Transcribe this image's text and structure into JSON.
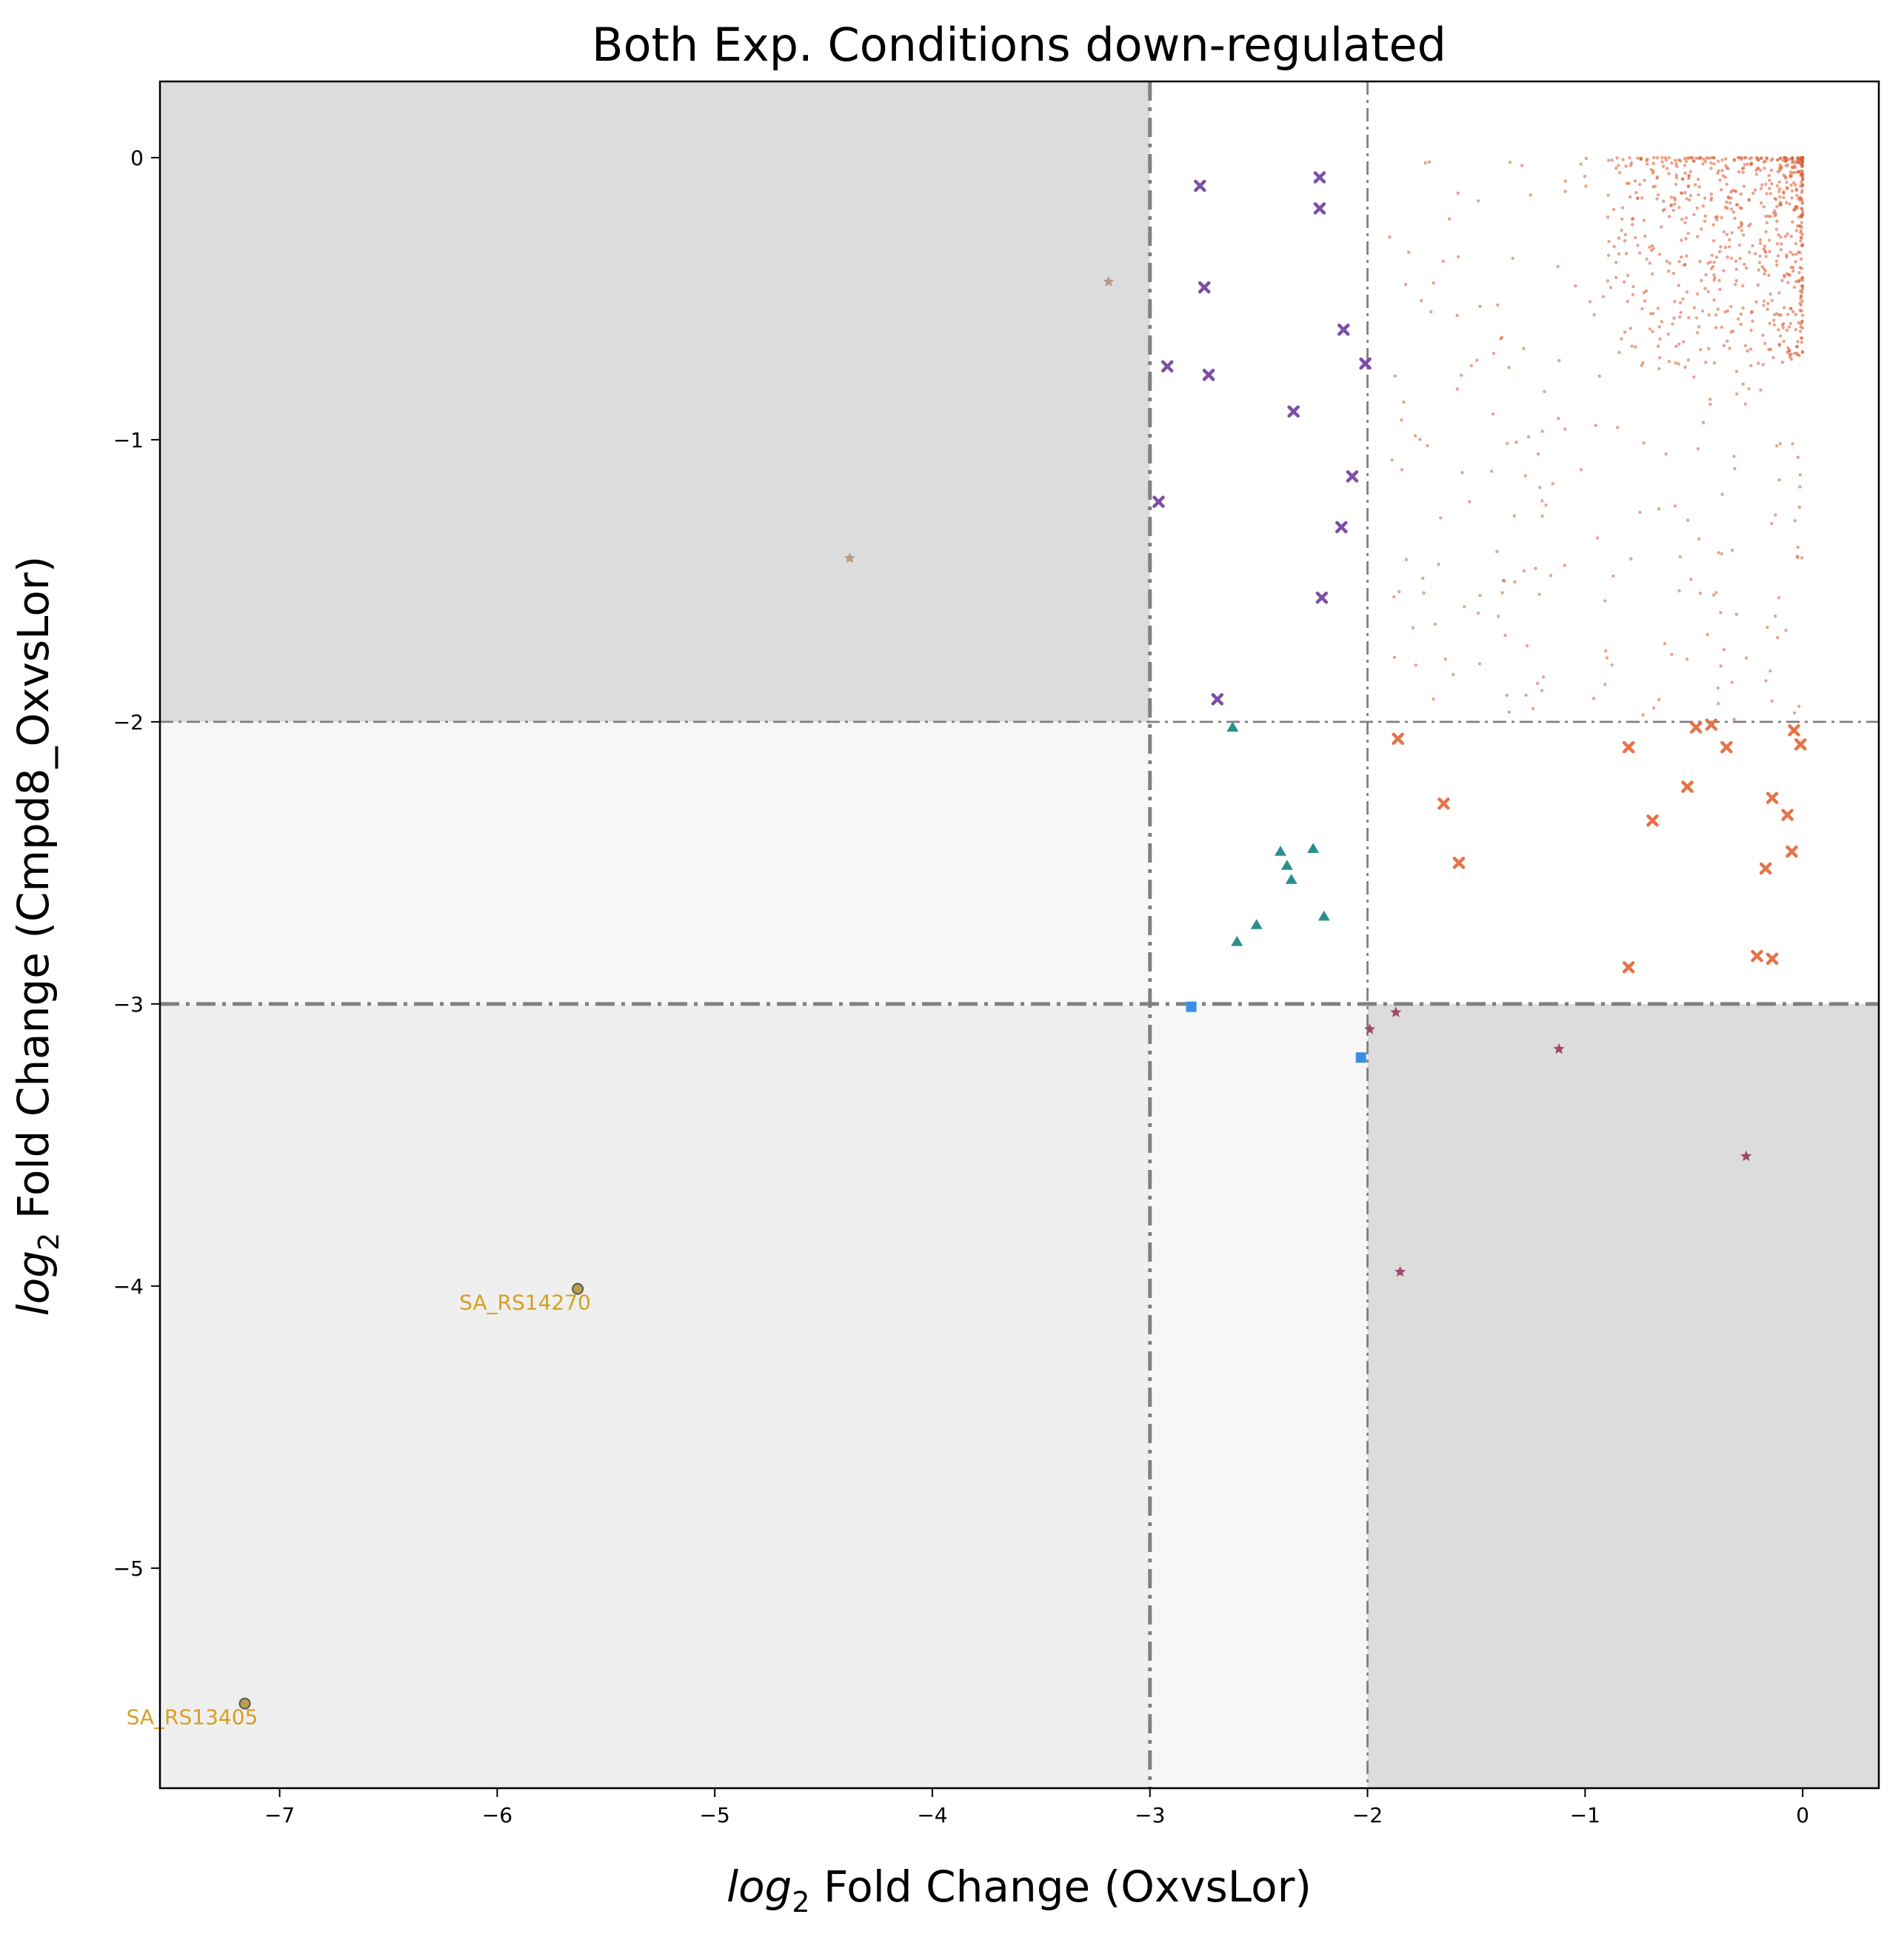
{
  "chart_data": {
    "type": "scatter",
    "title": "Both Exp. Conditions down-regulated",
    "xlabel_italic": "log",
    "xlabel_sub": "2",
    "xlabel_rest": " Fold Change (OxvsLor)",
    "ylabel_italic": "log",
    "ylabel_sub": "2",
    "ylabel_rest": " Fold Change (Cmpd8_OxvsLor)",
    "xlim": [
      -7.55,
      0.35
    ],
    "ylim": [
      -5.78,
      0.27
    ],
    "xticks": [
      -7,
      -6,
      -5,
      -4,
      -3,
      -2,
      -1,
      0
    ],
    "yticks": [
      0,
      -1,
      -2,
      -3,
      -4,
      -5
    ],
    "grid": false,
    "regions": [
      {
        "x": [
          -7.55,
          -3
        ],
        "y": [
          -2,
          0.27
        ],
        "color": "#dcdcdc"
      },
      {
        "x": [
          -2,
          0.35
        ],
        "y": [
          -5.78,
          -3
        ],
        "color": "#dcdcdc"
      },
      {
        "x": [
          -7.55,
          -3
        ],
        "y": [
          -5.78,
          -3
        ],
        "color": "#efefef"
      },
      {
        "x": [
          -7.55,
          -3
        ],
        "y": [
          -3,
          -2
        ],
        "color": "#f7f7f7"
      },
      {
        "x": [
          -3,
          -2
        ],
        "y": [
          -5.78,
          -3
        ],
        "color": "#f7f7f7"
      }
    ],
    "vlines": [
      {
        "x": -3,
        "style": "thick"
      },
      {
        "x": -2,
        "style": "thin"
      }
    ],
    "hlines": [
      {
        "y": -3,
        "style": "thick"
      },
      {
        "y": -2,
        "style": "thin"
      }
    ],
    "series": [
      {
        "marker": "x",
        "color": "#7b4fa6",
        "points": [
          [
            -2.77,
            -0.1
          ],
          [
            -2.75,
            -0.46
          ],
          [
            -2.22,
            -0.07
          ],
          [
            -2.22,
            -0.18
          ],
          [
            -2.92,
            -0.74
          ],
          [
            -2.73,
            -0.77
          ],
          [
            -2.11,
            -0.61
          ],
          [
            -2.01,
            -0.73
          ],
          [
            -2.34,
            -0.9
          ],
          [
            -2.07,
            -1.13
          ],
          [
            -2.96,
            -1.22
          ],
          [
            -2.12,
            -1.31
          ],
          [
            -2.21,
            -1.56
          ],
          [
            -2.69,
            -1.92
          ]
        ]
      },
      {
        "marker": "^",
        "color": "#2a8f8c",
        "points": [
          [
            -2.62,
            -2.02
          ],
          [
            -2.4,
            -2.46
          ],
          [
            -2.25,
            -2.45
          ],
          [
            -2.37,
            -2.51
          ],
          [
            -2.35,
            -2.56
          ],
          [
            -2.2,
            -2.69
          ],
          [
            -2.51,
            -2.72
          ],
          [
            -2.6,
            -2.78
          ]
        ]
      },
      {
        "marker": "x",
        "color": "#e67348",
        "points": [
          [
            -1.86,
            -2.06
          ],
          [
            -0.8,
            -2.09
          ],
          [
            -0.49,
            -2.02
          ],
          [
            -0.42,
            -2.01
          ],
          [
            -0.35,
            -2.09
          ],
          [
            -0.04,
            -2.03
          ],
          [
            -0.01,
            -2.08
          ],
          [
            -0.53,
            -2.23
          ],
          [
            -0.14,
            -2.27
          ],
          [
            -1.65,
            -2.29
          ],
          [
            -0.07,
            -2.33
          ],
          [
            -0.69,
            -2.35
          ],
          [
            -0.05,
            -2.46
          ],
          [
            -1.58,
            -2.5
          ],
          [
            -0.17,
            -2.52
          ],
          [
            -0.21,
            -2.83
          ],
          [
            -0.14,
            -2.84
          ],
          [
            -0.8,
            -2.87
          ]
        ]
      },
      {
        "marker": "s",
        "color": "#3a8ee6",
        "points": [
          [
            -2.81,
            -3.01
          ],
          [
            -2.03,
            -3.19
          ]
        ]
      },
      {
        "marker": "*",
        "color": "#9e4a6e",
        "points": [
          [
            -1.87,
            -3.03
          ],
          [
            -1.99,
            -3.09
          ],
          [
            -1.12,
            -3.16
          ],
          [
            -0.26,
            -3.54
          ],
          [
            -1.85,
            -3.95
          ]
        ]
      },
      {
        "marker": "*",
        "color": "#b89a86",
        "points": [
          [
            -3.19,
            -0.44
          ],
          [
            -4.38,
            -1.42
          ]
        ]
      },
      {
        "marker": "o",
        "color": "#b8a04a",
        "points": [
          [
            -5.63,
            -4.01
          ],
          [
            -7.16,
            -5.48
          ]
        ]
      }
    ],
    "cloud": {
      "color": "#d9582c",
      "description_hidden": true,
      "x_range": [
        -1.9,
        0
      ],
      "y_range": [
        -2.0,
        0
      ],
      "count": 900
    },
    "annotations": [
      {
        "text": "SA_RS14270",
        "x": -5.63,
        "y": -4.01,
        "color": "#d6a020"
      },
      {
        "text": "SA_RS13405",
        "x": -7.16,
        "y": -5.48,
        "color": "#d6a020"
      }
    ]
  }
}
